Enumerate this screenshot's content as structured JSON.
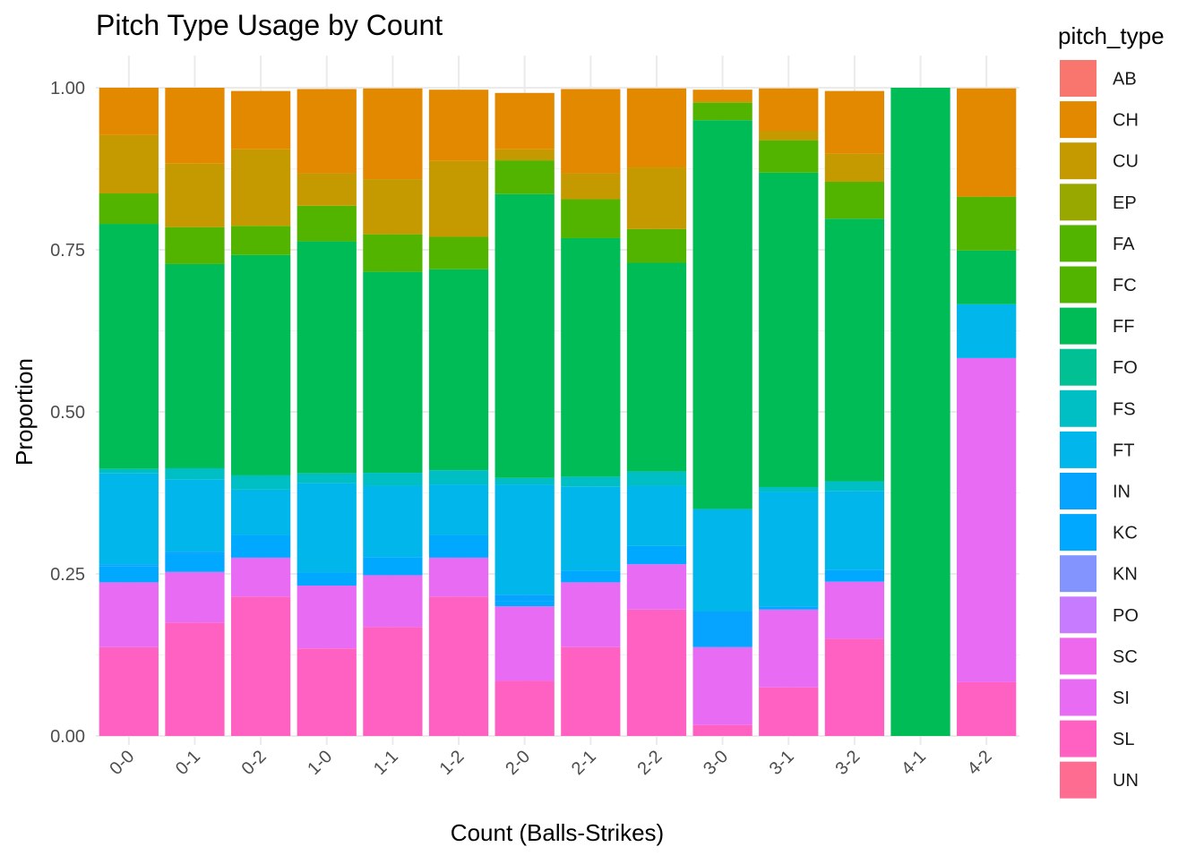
{
  "chart_data": {
    "type": "bar",
    "stacked": true,
    "normalized": true,
    "title": "Pitch Type Usage by Count",
    "xlabel": "Count (Balls-Strikes)",
    "ylabel": "Proportion",
    "ylim": [
      0,
      1
    ],
    "yticks": [
      "0.00",
      "0.25",
      "0.50",
      "0.75",
      "1.00"
    ],
    "ytick_values": [
      0,
      0.25,
      0.5,
      0.75,
      1.0
    ],
    "grid": true,
    "legend_title": "pitch_type",
    "legend_position": "right",
    "categories": [
      "0-0",
      "0-1",
      "0-2",
      "1-0",
      "1-1",
      "1-2",
      "2-0",
      "2-1",
      "2-2",
      "3-0",
      "3-1",
      "3-2",
      "4-1",
      "4-2"
    ],
    "series": [
      {
        "name": "AB",
        "color": "#F8766D",
        "values": [
          0,
          0,
          0,
          0,
          0,
          0,
          0,
          0,
          0,
          0,
          0,
          0,
          0,
          0
        ]
      },
      {
        "name": "CH",
        "color": "#E38900",
        "values": [
          0.073,
          0.117,
          0.09,
          0.13,
          0.14,
          0.11,
          0.087,
          0.13,
          0.122,
          0.017,
          0.066,
          0.097,
          0,
          0.167
        ]
      },
      {
        "name": "CU",
        "color": "#C49A00",
        "values": [
          0.09,
          0.098,
          0.118,
          0.05,
          0.085,
          0.117,
          0.017,
          0.04,
          0.095,
          0.003,
          0.014,
          0.043,
          0,
          0
        ]
      },
      {
        "name": "EP",
        "color": "#99A800",
        "values": [
          0,
          0,
          0,
          0,
          0,
          0,
          0,
          0,
          0,
          0,
          0,
          0,
          0,
          0
        ]
      },
      {
        "name": "FA",
        "color": "#53B400",
        "values": [
          0,
          0,
          0,
          0,
          0,
          0,
          0,
          0,
          0,
          0,
          0,
          0,
          0,
          0
        ]
      },
      {
        "name": "FC",
        "color": "#53B400",
        "values": [
          0.047,
          0.057,
          0.045,
          0.055,
          0.058,
          0.05,
          0.052,
          0.06,
          0.052,
          0.027,
          0.05,
          0.057,
          0,
          0.083
        ]
      },
      {
        "name": "FF",
        "color": "#00BC56",
        "values": [
          0.378,
          0.315,
          0.34,
          0.358,
          0.31,
          0.31,
          0.438,
          0.368,
          0.322,
          0.6,
          0.485,
          0.405,
          1.0,
          0.083
        ]
      },
      {
        "name": "FO",
        "color": "#00C094",
        "values": [
          0,
          0,
          0,
          0,
          0,
          0,
          0,
          0,
          0,
          0,
          0,
          0,
          0,
          0
        ]
      },
      {
        "name": "FS",
        "color": "#00BFC4",
        "values": [
          0.007,
          0.017,
          0.022,
          0.015,
          0.02,
          0.022,
          0.01,
          0.015,
          0.022,
          0,
          0.007,
          0.015,
          0,
          0
        ]
      },
      {
        "name": "FT",
        "color": "#00B6EB",
        "values": [
          0.14,
          0.112,
          0.07,
          0.138,
          0.11,
          0.078,
          0.17,
          0.13,
          0.093,
          0.158,
          0.177,
          0.122,
          0,
          0.083
        ]
      },
      {
        "name": "IN",
        "color": "#06A4FF",
        "values": [
          0.003,
          0.003,
          0,
          0,
          0,
          0,
          0.01,
          0,
          0,
          0.055,
          0,
          0,
          0,
          0
        ]
      },
      {
        "name": "KC",
        "color": "#00A9FF",
        "values": [
          0.025,
          0.028,
          0.035,
          0.02,
          0.028,
          0.035,
          0.008,
          0.018,
          0.028,
          0,
          0.005,
          0.018,
          0,
          0
        ]
      },
      {
        "name": "KN",
        "color": "#8494FF",
        "values": [
          0,
          0,
          0,
          0,
          0,
          0,
          0,
          0,
          0,
          0,
          0,
          0,
          0,
          0
        ]
      },
      {
        "name": "PO",
        "color": "#C77CFF",
        "values": [
          0,
          0,
          0,
          0,
          0,
          0,
          0,
          0,
          0,
          0,
          0,
          0,
          0,
          0
        ]
      },
      {
        "name": "SC",
        "color": "#ED68ED",
        "values": [
          0,
          0,
          0,
          0,
          0,
          0,
          0,
          0,
          0,
          0,
          0,
          0,
          0,
          0
        ]
      },
      {
        "name": "SI",
        "color": "#E76BF3",
        "values": [
          0.1,
          0.078,
          0.06,
          0.097,
          0.08,
          0.06,
          0.115,
          0.1,
          0.07,
          0.12,
          0.12,
          0.088,
          0,
          0.5
        ]
      },
      {
        "name": "SL",
        "color": "#FF61C3",
        "values": [
          0.137,
          0.175,
          0.215,
          0.135,
          0.168,
          0.215,
          0.085,
          0.137,
          0.195,
          0.017,
          0.075,
          0.15,
          0,
          0.083
        ]
      },
      {
        "name": "UN",
        "color": "#FF6C91",
        "values": [
          0,
          0,
          0,
          0,
          0,
          0,
          0,
          0,
          0,
          0,
          0,
          0,
          0,
          0
        ]
      }
    ]
  }
}
